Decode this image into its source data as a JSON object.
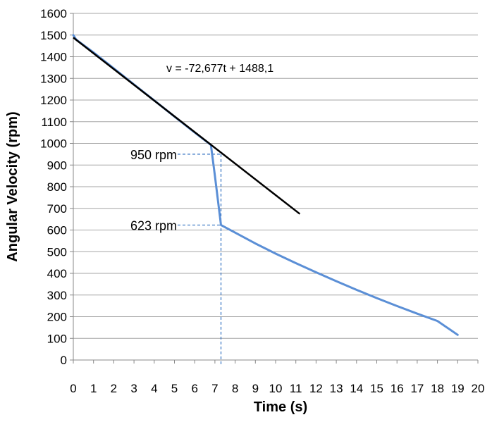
{
  "chart_data": {
    "type": "line",
    "xlabel": "Time (s)",
    "ylabel": "Angular Velocity (rpm)",
    "xlim": [
      0,
      20
    ],
    "ylim": [
      0,
      1600
    ],
    "x_ticks": [
      0,
      1,
      2,
      3,
      4,
      5,
      6,
      7,
      8,
      9,
      10,
      11,
      12,
      13,
      14,
      15,
      16,
      17,
      18,
      19,
      20
    ],
    "y_ticks": [
      0,
      100,
      200,
      300,
      400,
      500,
      600,
      700,
      800,
      900,
      1000,
      1100,
      1200,
      1300,
      1400,
      1500,
      1600
    ],
    "grid": "horizontal",
    "colors": {
      "measured": "#5b8fd6",
      "fit": "#000000",
      "guide": "#2f6fc0"
    },
    "series": [
      {
        "x": [
          0,
          0.15,
          1,
          2,
          3,
          4,
          5,
          6,
          6.8,
          7.0,
          7.3,
          8,
          9,
          10,
          11,
          12,
          13,
          14,
          15,
          16,
          17,
          18,
          19
        ],
        "y": [
          1500,
          1478,
          1420,
          1346,
          1272,
          1198,
          1124,
          1050,
          993,
          850,
          623,
          588,
          538,
          491,
          447,
          405,
          364,
          324,
          286,
          249,
          214,
          180,
          116
        ]
      },
      {
        "x": [
          0,
          11.2
        ],
        "y": [
          1488.1,
          674.1
        ]
      }
    ],
    "annotations": [
      {
        "text": "v = -72,677t + 1488,1",
        "x": 4.6,
        "y": 1330
      },
      {
        "text": "950 rpm",
        "x": 7.3,
        "y": 950
      },
      {
        "text": "623 rpm",
        "x": 7.3,
        "y": 623
      }
    ]
  }
}
